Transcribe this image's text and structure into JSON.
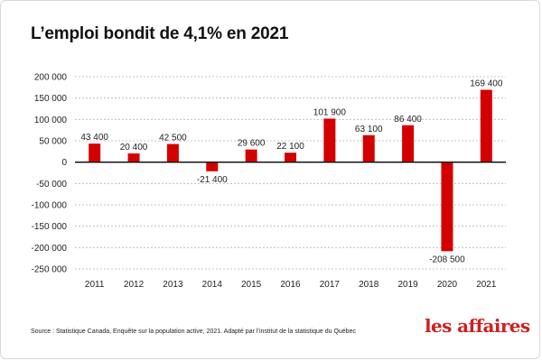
{
  "title": "L’emploi bondit de 4,1% en 2021",
  "source": "Source : Statistique Canada, Enquête sur la population active, 2021. Adapté par l’institut de la statistique du Québec",
  "logo": "les affaires",
  "colors": {
    "bar": "#d40000",
    "grid": "#b5b5b5",
    "zero_line": "#000000",
    "text": "#222222",
    "logo": "#d11f1f"
  },
  "chart_data": {
    "type": "bar",
    "title": "L’emploi bondit de 4,1% en 2021",
    "xlabel": "",
    "ylabel": "",
    "categories": [
      "2011",
      "2012",
      "2013",
      "2014",
      "2015",
      "2016",
      "2017",
      "2018",
      "2019",
      "2020",
      "2021"
    ],
    "values": [
      43400,
      20400,
      42500,
      -21400,
      29600,
      22100,
      101900,
      63100,
      86400,
      -208500,
      169400
    ],
    "value_labels": [
      "43 400",
      "20 400",
      "42 500",
      "-21 400",
      "29 600",
      "22 100",
      "101 900",
      "63 100",
      "86 400",
      "-208 500",
      "169 400"
    ],
    "ylim": [
      -250000,
      200000
    ],
    "yticks": [
      200000,
      150000,
      100000,
      50000,
      0,
      -50000,
      -100000,
      -150000,
      -200000,
      -250000
    ],
    "ytick_labels": [
      "200 000",
      "150 000",
      "100 000",
      "50 000",
      "0",
      "-50 000",
      "-100 000",
      "-150 000",
      "-200 000",
      "-250 000"
    ],
    "grid": "horizontal dashed",
    "legend": "none"
  }
}
